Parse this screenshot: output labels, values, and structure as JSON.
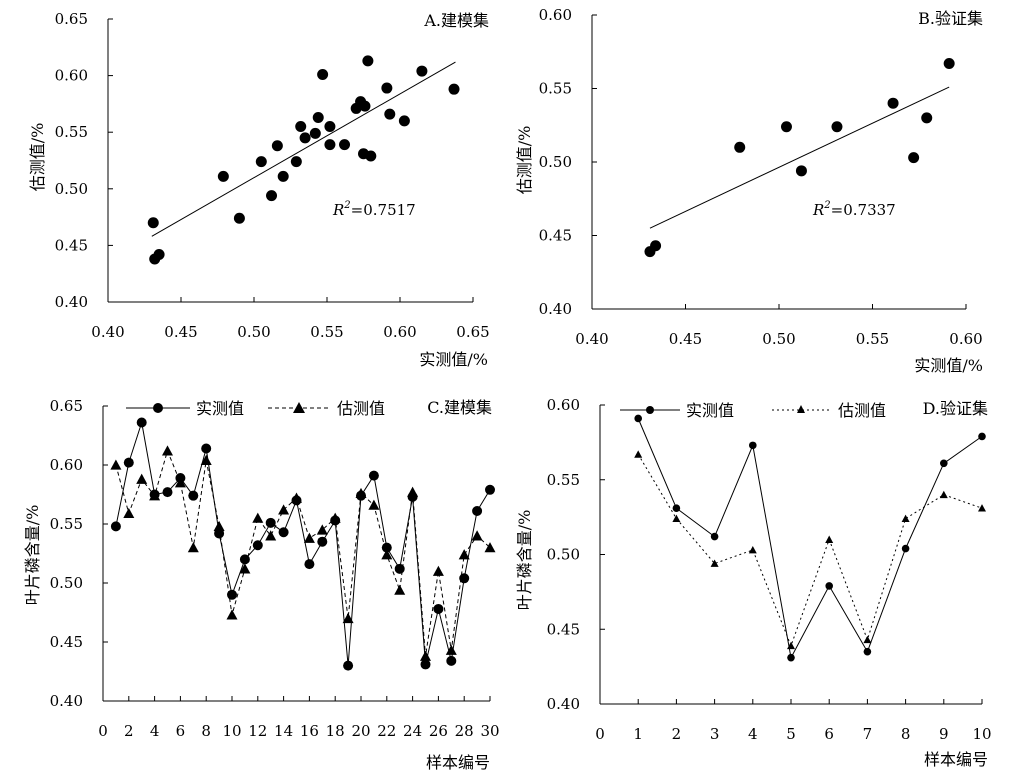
{
  "chart_data": [
    {
      "id": "A",
      "type": "scatter",
      "panel_label": "A.建模集",
      "xlabel": "实测值/%",
      "ylabel": "估测值/%",
      "xlim": [
        0.4,
        0.65
      ],
      "ylim": [
        0.4,
        0.65
      ],
      "xticks": [
        "0.40",
        "0.45",
        "0.50",
        "0.55",
        "0.60",
        "0.65"
      ],
      "yticks": [
        "0.40",
        "0.45",
        "0.50",
        "0.55",
        "0.60",
        "0.65"
      ],
      "r2_label": "R",
      "r2_sup": "2",
      "r2_value": "=0.7517",
      "trend": {
        "x": [
          0.43,
          0.638
        ],
        "y": [
          0.458,
          0.612
        ]
      },
      "points": [
        [
          0.431,
          0.47
        ],
        [
          0.432,
          0.438
        ],
        [
          0.435,
          0.442
        ],
        [
          0.479,
          0.511
        ],
        [
          0.49,
          0.474
        ],
        [
          0.505,
          0.524
        ],
        [
          0.512,
          0.494
        ],
        [
          0.516,
          0.538
        ],
        [
          0.52,
          0.511
        ],
        [
          0.529,
          0.524
        ],
        [
          0.532,
          0.555
        ],
        [
          0.535,
          0.545
        ],
        [
          0.542,
          0.549
        ],
        [
          0.544,
          0.563
        ],
        [
          0.547,
          0.601
        ],
        [
          0.552,
          0.539
        ],
        [
          0.552,
          0.555
        ],
        [
          0.562,
          0.539
        ],
        [
          0.57,
          0.571
        ],
        [
          0.573,
          0.577
        ],
        [
          0.576,
          0.573
        ],
        [
          0.575,
          0.531
        ],
        [
          0.578,
          0.613
        ],
        [
          0.58,
          0.529
        ],
        [
          0.591,
          0.589
        ],
        [
          0.593,
          0.566
        ],
        [
          0.603,
          0.56
        ],
        [
          0.615,
          0.604
        ],
        [
          0.637,
          0.588
        ]
      ]
    },
    {
      "id": "B",
      "type": "scatter",
      "panel_label": "B.验证集",
      "xlabel": "实测值/%",
      "ylabel": "估测值/%",
      "xlim": [
        0.4,
        0.6
      ],
      "ylim": [
        0.4,
        0.6
      ],
      "xticks": [
        "0.40",
        "0.45",
        "0.50",
        "0.55",
        "0.60"
      ],
      "yticks": [
        "0.40",
        "0.45",
        "0.50",
        "0.55",
        "0.60"
      ],
      "r2_label": "R",
      "r2_sup": "2",
      "r2_value": "=0.7337",
      "trend": {
        "x": [
          0.431,
          0.591
        ],
        "y": [
          0.455,
          0.551
        ]
      },
      "points": [
        [
          0.431,
          0.439
        ],
        [
          0.434,
          0.443
        ],
        [
          0.479,
          0.51
        ],
        [
          0.504,
          0.524
        ],
        [
          0.512,
          0.494
        ],
        [
          0.531,
          0.524
        ],
        [
          0.561,
          0.54
        ],
        [
          0.572,
          0.503
        ],
        [
          0.579,
          0.53
        ],
        [
          0.591,
          0.567
        ]
      ]
    },
    {
      "id": "C",
      "type": "line",
      "panel_label": "C.建模集",
      "xlabel": "样本编号",
      "ylabel": "叶片磷含量/%",
      "xlim": [
        0,
        30
      ],
      "ylim": [
        0.4,
        0.65
      ],
      "xticks": [
        "0",
        "2",
        "4",
        "6",
        "8",
        "10",
        "12",
        "14",
        "16",
        "18",
        "20",
        "22",
        "24",
        "26",
        "28",
        "30"
      ],
      "yticks": [
        "0.40",
        "0.45",
        "0.50",
        "0.55",
        "0.60",
        "0.65"
      ],
      "series": [
        {
          "name": "实测值",
          "marker": "circle",
          "dash": "solid",
          "values": [
            0.548,
            0.602,
            0.636,
            0.575,
            0.577,
            0.589,
            0.574,
            0.614,
            0.542,
            0.49,
            0.52,
            0.532,
            0.551,
            0.543,
            0.57,
            0.516,
            0.535,
            0.553,
            0.43,
            0.574,
            0.591,
            0.53,
            0.512,
            0.573,
            0.431,
            0.478,
            0.434,
            0.504,
            0.561,
            0.579
          ]
        },
        {
          "name": "估测值",
          "marker": "triangle",
          "dash": "dashed",
          "values": [
            0.6,
            0.559,
            0.588,
            0.574,
            0.612,
            0.585,
            0.53,
            0.604,
            0.548,
            0.473,
            0.512,
            0.555,
            0.54,
            0.562,
            0.572,
            0.538,
            0.545,
            0.555,
            0.47,
            0.576,
            0.566,
            0.524,
            0.494,
            0.577,
            0.438,
            0.51,
            0.443,
            0.524,
            0.54,
            0.53
          ]
        }
      ]
    },
    {
      "id": "D",
      "type": "line",
      "panel_label": "D.验证集",
      "xlabel": "样本编号",
      "ylabel": "叶片磷含量/%",
      "xlim": [
        0,
        10
      ],
      "ylim": [
        0.4,
        0.6
      ],
      "xticks": [
        "0",
        "1",
        "2",
        "3",
        "4",
        "5",
        "6",
        "7",
        "8",
        "9",
        "10"
      ],
      "yticks": [
        "0.40",
        "0.45",
        "0.50",
        "0.55",
        "0.60"
      ],
      "series": [
        {
          "name": "实测值",
          "marker": "circle",
          "dash": "solid",
          "values": [
            0.591,
            0.531,
            0.512,
            0.573,
            0.431,
            0.479,
            0.435,
            0.504,
            0.561,
            0.579
          ]
        },
        {
          "name": "估测值",
          "marker": "triangle",
          "dash": "dotted",
          "values": [
            0.567,
            0.524,
            0.494,
            0.503,
            0.439,
            0.51,
            0.443,
            0.524,
            0.54,
            0.531
          ]
        }
      ]
    }
  ]
}
